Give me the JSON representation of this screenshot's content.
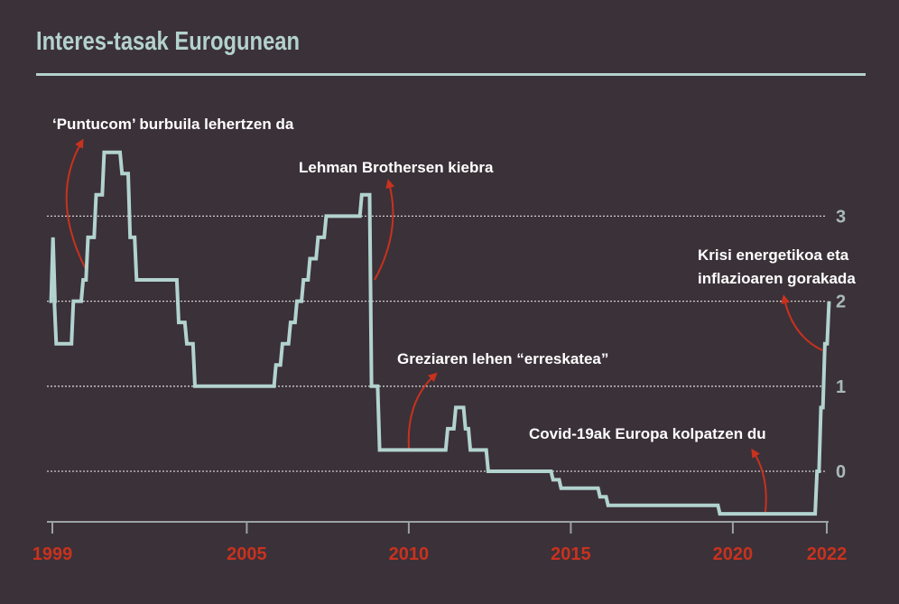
{
  "colors": {
    "background": "#3b3139",
    "line": "#b2d3cf",
    "accent": "#c8321e",
    "axis_text": "#a9bab7"
  },
  "chart_data": {
    "type": "line",
    "title": "Interes-tasak Eurogunean",
    "xlabel": "",
    "ylabel": "",
    "ylim": [
      -0.6,
      4.1
    ],
    "xlim": [
      1999,
      2023
    ],
    "grid": true,
    "x_ticks": [
      {
        "label": "1999",
        "value": 1999
      },
      {
        "label": "2005",
        "value": 2005
      },
      {
        "label": "2010",
        "value": 2010
      },
      {
        "label": "2015",
        "value": 2015
      },
      {
        "label": "2020",
        "value": 2020
      },
      {
        "label": "2022",
        "value": 2022.9
      }
    ],
    "y_ticks": [
      {
        "label": "0",
        "value": 0
      },
      {
        "label": "1",
        "value": 1
      },
      {
        "label": "2",
        "value": 2
      },
      {
        "label": "3",
        "value": 3
      }
    ],
    "series": [
      {
        "name": "Interes-tasa",
        "step": true,
        "points": [
          [
            1999.0,
            2.0
          ],
          [
            1999.02,
            2.75
          ],
          [
            1999.08,
            2.0
          ],
          [
            1999.12,
            1.5
          ],
          [
            1999.65,
            2.0
          ],
          [
            1999.95,
            2.25
          ],
          [
            2000.1,
            2.75
          ],
          [
            2000.35,
            3.25
          ],
          [
            2000.6,
            3.75
          ],
          [
            2001.15,
            3.5
          ],
          [
            2001.4,
            2.75
          ],
          [
            2001.6,
            2.25
          ],
          [
            2002.9,
            1.75
          ],
          [
            2003.15,
            1.5
          ],
          [
            2003.4,
            1.0
          ],
          [
            2005.9,
            1.25
          ],
          [
            2006.1,
            1.5
          ],
          [
            2006.35,
            1.75
          ],
          [
            2006.55,
            2.0
          ],
          [
            2006.75,
            2.25
          ],
          [
            2006.95,
            2.5
          ],
          [
            2007.2,
            2.75
          ],
          [
            2007.45,
            3.0
          ],
          [
            2008.55,
            3.25
          ],
          [
            2008.85,
            1.0
          ],
          [
            2009.1,
            0.25
          ],
          [
            2011.2,
            0.5
          ],
          [
            2011.45,
            0.75
          ],
          [
            2011.75,
            0.5
          ],
          [
            2011.9,
            0.25
          ],
          [
            2012.45,
            0.0
          ],
          [
            2014.45,
            -0.1
          ],
          [
            2014.7,
            -0.2
          ],
          [
            2015.9,
            -0.3
          ],
          [
            2016.15,
            -0.4
          ],
          [
            2019.6,
            -0.5
          ],
          [
            2022.6,
            0.0
          ],
          [
            2022.72,
            0.75
          ],
          [
            2022.84,
            1.5
          ],
          [
            2022.97,
            2.0
          ]
        ]
      }
    ],
    "annotations": [
      {
        "text": "‘Puntucom’ burbuila lehertzen da",
        "year": 2000.0
      },
      {
        "text": "Lehman Brothersen kiebra",
        "year": 2008.6
      },
      {
        "text": "Greziaren lehen “erreskatea”",
        "year": 2010.0
      },
      {
        "text": "Covid-19ak Europa kolpatzen du",
        "year": 2021.0
      },
      {
        "text": "Krisi energetikoa eta",
        "text2": "inflazioaren gorakada",
        "year": 2022.7
      }
    ]
  }
}
